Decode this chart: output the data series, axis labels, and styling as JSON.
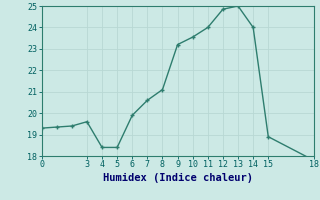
{
  "x": [
    0,
    1,
    2,
    3,
    4,
    5,
    6,
    7,
    8,
    9,
    10,
    11,
    12,
    13,
    14,
    15,
    18
  ],
  "y": [
    19.3,
    19.35,
    19.4,
    19.6,
    18.4,
    18.4,
    19.9,
    20.6,
    21.1,
    23.2,
    23.55,
    24.0,
    24.85,
    25.0,
    24.0,
    18.9,
    17.8
  ],
  "xlim": [
    0,
    18
  ],
  "ylim": [
    18,
    25
  ],
  "yticks": [
    18,
    19,
    20,
    21,
    22,
    23,
    24,
    25
  ],
  "xticks": [
    0,
    3,
    4,
    5,
    6,
    7,
    8,
    9,
    10,
    11,
    12,
    13,
    14,
    15,
    18
  ],
  "xlabel": "Humidex (Indice chaleur)",
  "line_color": "#2e7d6e",
  "bg_color": "#cce9e5",
  "grid_color": "#b8d8d4",
  "xlabel_color": "#00006e",
  "tick_color": "#006060"
}
